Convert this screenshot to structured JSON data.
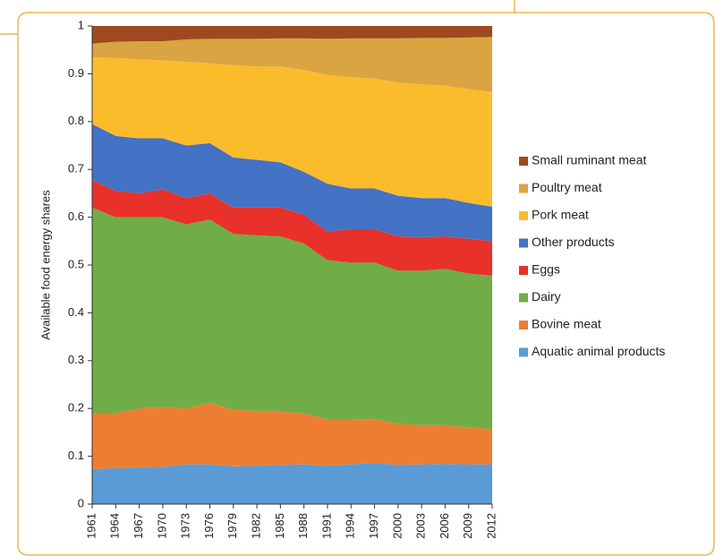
{
  "chart_data": {
    "type": "stacked_area",
    "y_label": "Available food energy shares",
    "x": [
      1961,
      1964,
      1967,
      1970,
      1973,
      1976,
      1979,
      1982,
      1985,
      1988,
      1991,
      1994,
      1997,
      2000,
      2003,
      2006,
      2009,
      2012
    ],
    "xlim": [
      1961,
      2012
    ],
    "xticks": [
      1961,
      1964,
      1967,
      1970,
      1973,
      1976,
      1979,
      1982,
      1985,
      1988,
      1991,
      1994,
      1997,
      2000,
      2003,
      2006,
      2009,
      2012
    ],
    "ylim": [
      0,
      1
    ],
    "yticks": [
      0,
      0.1,
      0.2,
      0.3,
      0.4,
      0.5,
      0.6,
      0.7,
      0.8,
      0.9,
      1
    ],
    "legend": "right",
    "series": [
      {
        "name": "Aquatic animal products",
        "color": "#5b9bd5",
        "values": [
          0.073,
          0.075,
          0.077,
          0.078,
          0.083,
          0.083,
          0.079,
          0.08,
          0.082,
          0.083,
          0.08,
          0.083,
          0.086,
          0.082,
          0.083,
          0.084,
          0.083,
          0.083
        ]
      },
      {
        "name": "Bovine meat",
        "color": "#ed7d31",
        "values": [
          0.117,
          0.115,
          0.123,
          0.125,
          0.117,
          0.129,
          0.118,
          0.115,
          0.111,
          0.107,
          0.097,
          0.094,
          0.092,
          0.086,
          0.082,
          0.081,
          0.077,
          0.074
        ]
      },
      {
        "name": "Dairy",
        "color": "#70ad47",
        "values": [
          0.43,
          0.41,
          0.4,
          0.397,
          0.385,
          0.383,
          0.368,
          0.367,
          0.367,
          0.355,
          0.333,
          0.328,
          0.327,
          0.32,
          0.323,
          0.327,
          0.322,
          0.321
        ]
      },
      {
        "name": "Eggs",
        "color": "#e8312a",
        "values": [
          0.058,
          0.055,
          0.05,
          0.058,
          0.055,
          0.055,
          0.055,
          0.058,
          0.06,
          0.06,
          0.06,
          0.07,
          0.07,
          0.072,
          0.07,
          0.068,
          0.073,
          0.072
        ]
      },
      {
        "name": "Other products",
        "color": "#4472c4",
        "values": [
          0.117,
          0.115,
          0.115,
          0.107,
          0.11,
          0.105,
          0.105,
          0.1,
          0.095,
          0.09,
          0.1,
          0.085,
          0.085,
          0.085,
          0.082,
          0.08,
          0.075,
          0.072
        ]
      },
      {
        "name": "Pork meat",
        "color": "#fbbc2c",
        "values": [
          0.14,
          0.163,
          0.165,
          0.163,
          0.175,
          0.167,
          0.193,
          0.195,
          0.2,
          0.213,
          0.228,
          0.233,
          0.23,
          0.237,
          0.238,
          0.235,
          0.238,
          0.24
        ]
      },
      {
        "name": "Poultry meat",
        "color": "#d9a441",
        "values": [
          0.028,
          0.034,
          0.038,
          0.04,
          0.047,
          0.051,
          0.055,
          0.058,
          0.059,
          0.066,
          0.075,
          0.081,
          0.084,
          0.092,
          0.097,
          0.1,
          0.108,
          0.115
        ]
      },
      {
        "name": "Small ruminant meat",
        "color": "#9e4a1e",
        "values": [
          0.037,
          0.033,
          0.032,
          0.032,
          0.028,
          0.027,
          0.027,
          0.027,
          0.026,
          0.026,
          0.027,
          0.026,
          0.026,
          0.026,
          0.025,
          0.025,
          0.024,
          0.023
        ]
      }
    ]
  }
}
